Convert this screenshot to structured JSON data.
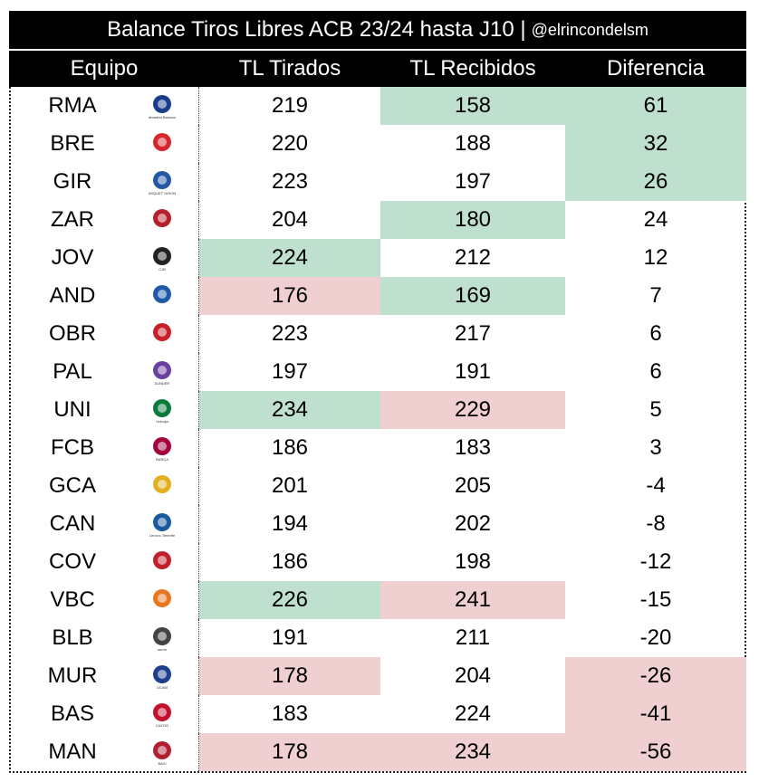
{
  "title": "Balance Tiros Libres ACB 23/24 hasta J10 | ",
  "handle": "@elrincondelsm",
  "headers": {
    "team": "Equipo",
    "tl": "TL Tirados",
    "tr": "TL Recibidos",
    "dif": "Diferencia"
  },
  "colors": {
    "green": "#bfe0cf",
    "red": "#efcfcf"
  },
  "rows": [
    {
      "code": "RMA",
      "logo": "real-madrid-logo",
      "logo_text": "Realmadrid Baloncesto",
      "tl": "219",
      "tr": "158",
      "dif": "61",
      "tl_hl": "",
      "tr_hl": "green",
      "dif_hl": "green"
    },
    {
      "code": "BRE",
      "logo": "breogan-logo",
      "logo_text": "",
      "tl": "220",
      "tr": "188",
      "dif": "32",
      "tl_hl": "",
      "tr_hl": "",
      "dif_hl": "green"
    },
    {
      "code": "GIR",
      "logo": "girona-logo",
      "logo_text": "BÀSQUET GIRONA",
      "tl": "223",
      "tr": "197",
      "dif": "26",
      "tl_hl": "",
      "tr_hl": "",
      "dif_hl": "green"
    },
    {
      "code": "ZAR",
      "logo": "zaragoza-logo",
      "logo_text": "",
      "tl": "204",
      "tr": "180",
      "dif": "24",
      "tl_hl": "",
      "tr_hl": "green",
      "dif_hl": ""
    },
    {
      "code": "JOV",
      "logo": "joventut-logo",
      "logo_text": "CJB",
      "tl": "224",
      "tr": "212",
      "dif": "12",
      "tl_hl": "green",
      "tr_hl": "",
      "dif_hl": ""
    },
    {
      "code": "AND",
      "logo": "andorra-logo",
      "logo_text": "",
      "tl": "176",
      "tr": "169",
      "dif": "7",
      "tl_hl": "red",
      "tr_hl": "green",
      "dif_hl": ""
    },
    {
      "code": "OBR",
      "logo": "obradoiro-logo",
      "logo_text": "",
      "tl": "223",
      "tr": "217",
      "dif": "6",
      "tl_hl": "",
      "tr_hl": "",
      "dif_hl": ""
    },
    {
      "code": "PAL",
      "logo": "palencia-logo",
      "logo_text": "ZUNDER",
      "tl": "197",
      "tr": "191",
      "dif": "6",
      "tl_hl": "",
      "tr_hl": "",
      "dif_hl": ""
    },
    {
      "code": "UNI",
      "logo": "unicaja-logo",
      "logo_text": "Unicaja",
      "tl": "234",
      "tr": "229",
      "dif": "5",
      "tl_hl": "green",
      "tr_hl": "red",
      "dif_hl": ""
    },
    {
      "code": "FCB",
      "logo": "barca-logo",
      "logo_text": "BARÇA",
      "tl": "186",
      "tr": "183",
      "dif": "3",
      "tl_hl": "",
      "tr_hl": "",
      "dif_hl": ""
    },
    {
      "code": "GCA",
      "logo": "gran-canaria-logo",
      "logo_text": "",
      "tl": "201",
      "tr": "205",
      "dif": "-4",
      "tl_hl": "",
      "tr_hl": "",
      "dif_hl": ""
    },
    {
      "code": "CAN",
      "logo": "canarias-logo",
      "logo_text": "Lenovo Tenerife",
      "tl": "194",
      "tr": "202",
      "dif": "-8",
      "tl_hl": "",
      "tr_hl": "",
      "dif_hl": ""
    },
    {
      "code": "COV",
      "logo": "covirán-logo",
      "logo_text": "",
      "tl": "186",
      "tr": "198",
      "dif": "-12",
      "tl_hl": "",
      "tr_hl": "",
      "dif_hl": ""
    },
    {
      "code": "VBC",
      "logo": "valencia-logo",
      "logo_text": "",
      "tl": "226",
      "tr": "241",
      "dif": "-15",
      "tl_hl": "green",
      "tr_hl": "red",
      "dif_hl": ""
    },
    {
      "code": "BLB",
      "logo": "bilbao-logo",
      "logo_text": "surne",
      "tl": "191",
      "tr": "211",
      "dif": "-20",
      "tl_hl": "",
      "tr_hl": "",
      "dif_hl": ""
    },
    {
      "code": "MUR",
      "logo": "ucam-murcia-logo",
      "logo_text": "UCAM",
      "tl": "178",
      "tr": "204",
      "dif": "-26",
      "tl_hl": "red",
      "tr_hl": "",
      "dif_hl": "red"
    },
    {
      "code": "BAS",
      "logo": "baskonia-logo",
      "logo_text": "CAZOO",
      "tl": "183",
      "tr": "224",
      "dif": "-41",
      "tl_hl": "",
      "tr_hl": "",
      "dif_hl": "red"
    },
    {
      "code": "MAN",
      "logo": "manresa-logo",
      "logo_text": "BAXI",
      "tl": "178",
      "tr": "234",
      "dif": "-56",
      "tl_hl": "red",
      "tr_hl": "red",
      "dif_hl": "red"
    }
  ]
}
